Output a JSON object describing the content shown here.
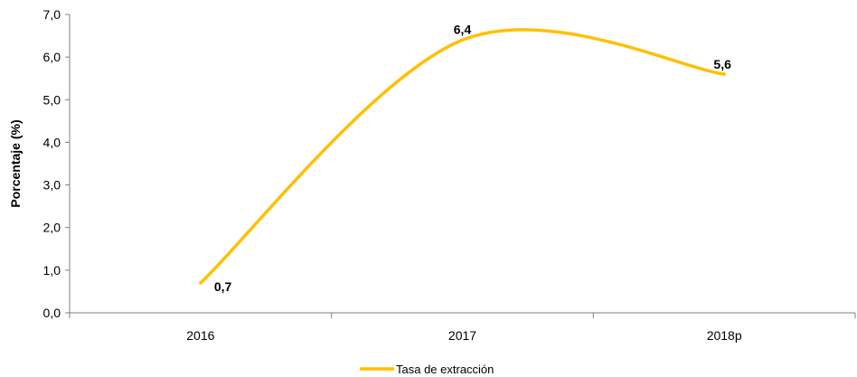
{
  "chart_data": {
    "type": "line",
    "categories": [
      "2016",
      "2017",
      "2018p"
    ],
    "series": [
      {
        "name": "Tasa de extracción",
        "values": [
          0.7,
          6.4,
          5.6
        ],
        "color": "#FFC000"
      }
    ],
    "data_labels": [
      "0,7",
      "6,4",
      "5,6"
    ],
    "ylabel": "Porcentaje (%)",
    "xlabel": "",
    "ylim": [
      0,
      7
    ],
    "y_ticks": [
      0,
      1,
      2,
      3,
      4,
      5,
      6,
      7
    ],
    "y_tick_labels": [
      "0,0",
      "1,0",
      "2,0",
      "3,0",
      "4,0",
      "5,0",
      "6,0",
      "7,0"
    ],
    "grid": false,
    "smooth": true,
    "legend_position": "bottom"
  }
}
